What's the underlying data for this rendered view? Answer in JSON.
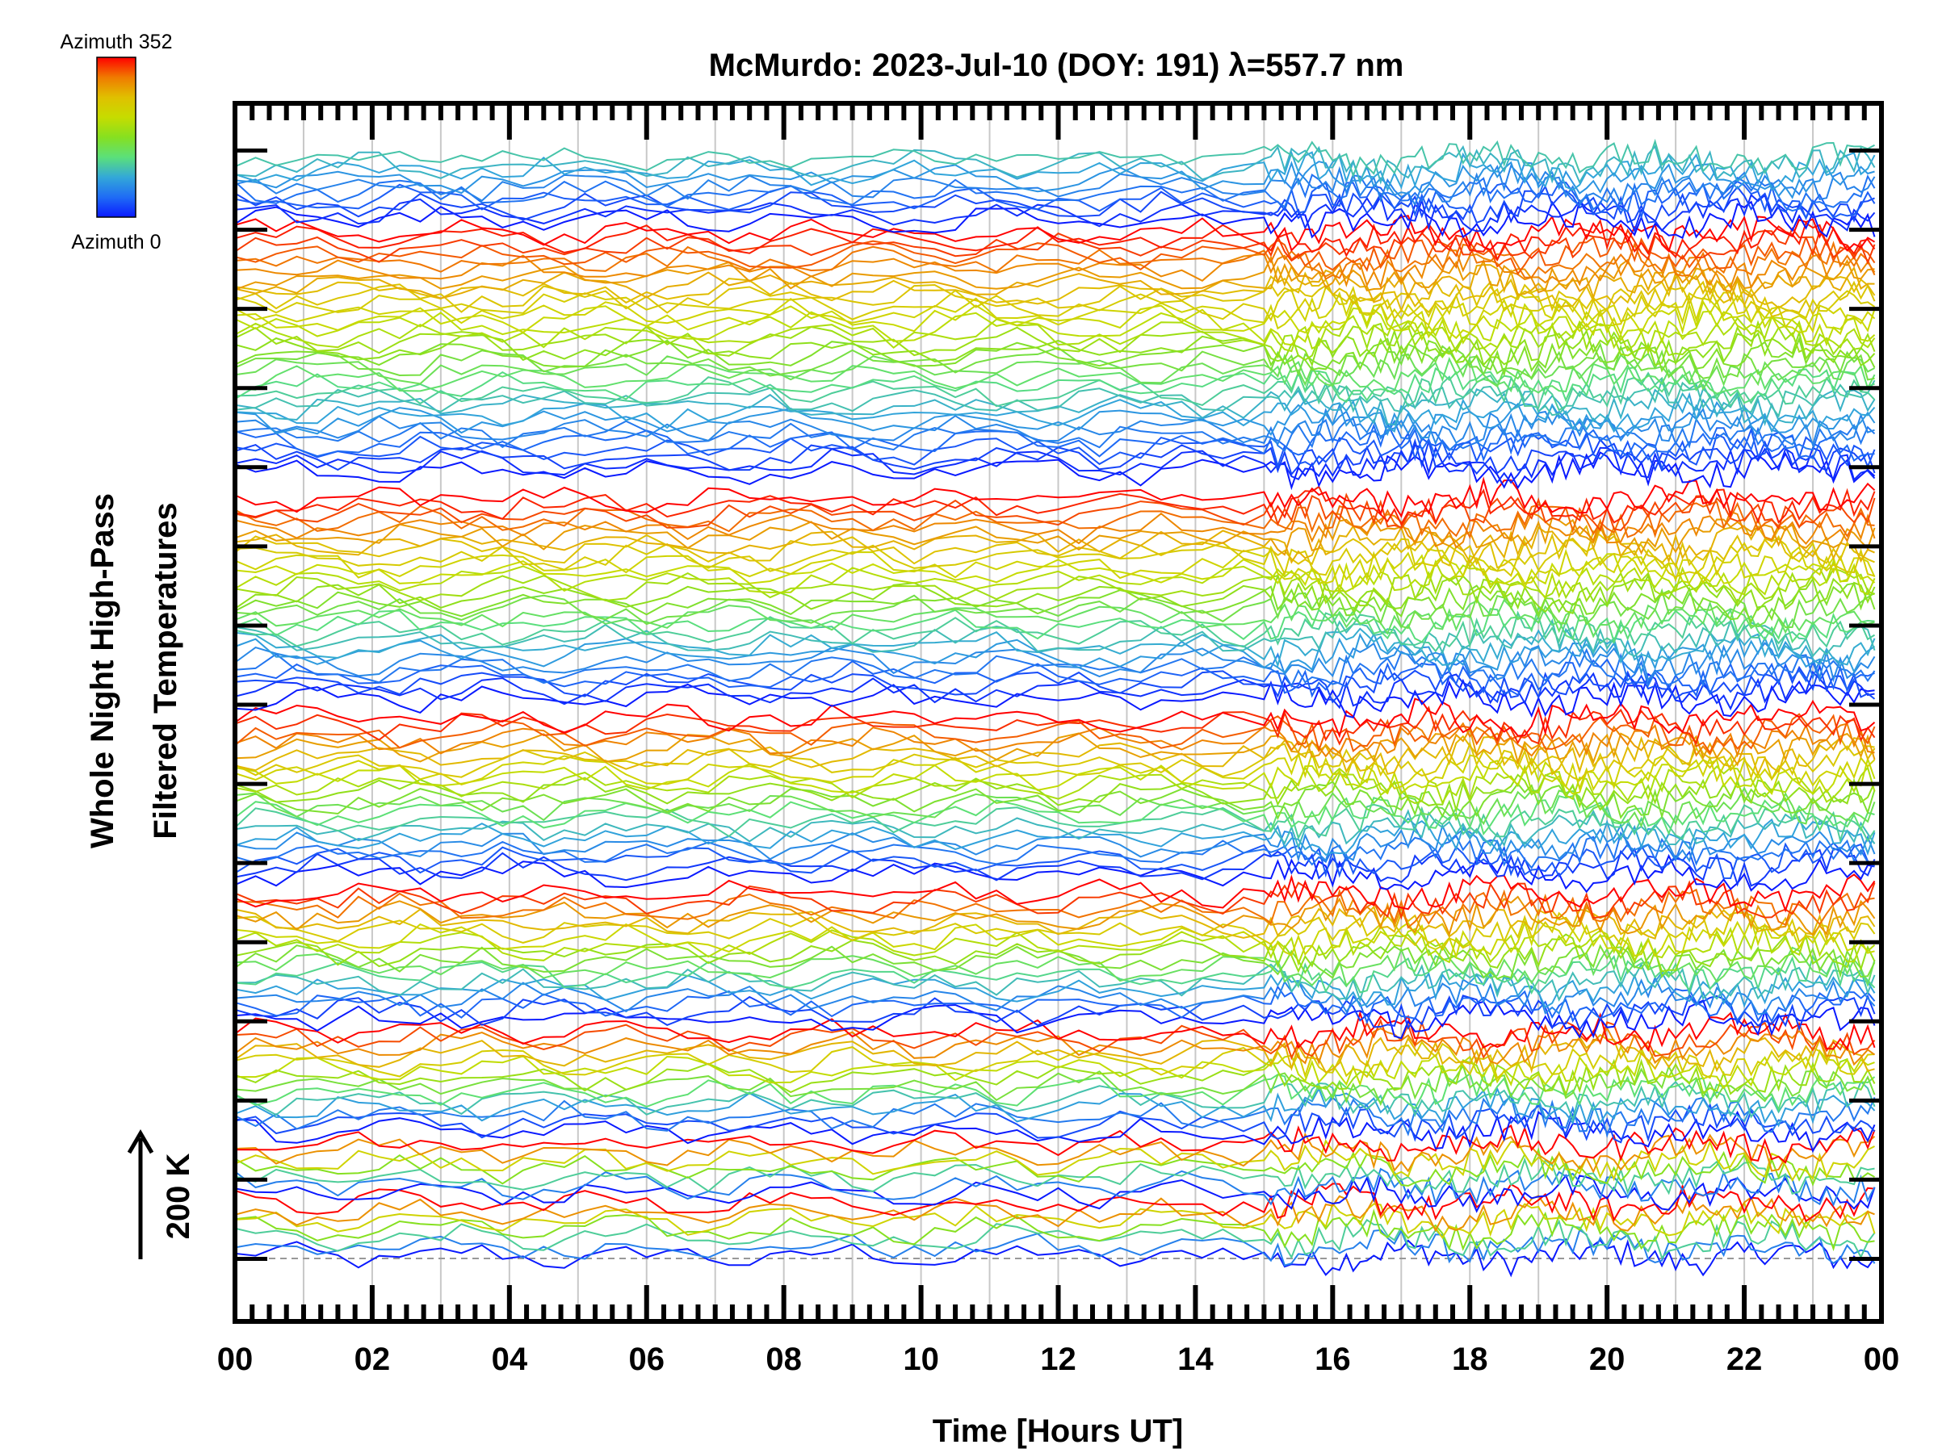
{
  "chart_data": {
    "type": "line",
    "title": "McMurdo: 2023-Jul-10 (DOY: 191) λ=557.7 nm",
    "xlabel": "Time [Hours UT]",
    "ylabel_lines": [
      "Whole Night High-Pass",
      "Filtered Temperatures"
    ],
    "xlim": [
      0,
      24
    ],
    "x_tick_labels": [
      "00",
      "02",
      "04",
      "06",
      "08",
      "10",
      "12",
      "14",
      "16",
      "18",
      "20",
      "22",
      "00"
    ],
    "x_major_step_hours": 2,
    "x_minor_step_hours": 0.25,
    "x_grid_step_hours": 1,
    "ylim_K": [
      -98,
      1810
    ],
    "y_tick_step_K": 124,
    "baseline_K": 0,
    "scale_bar": {
      "label": "200 K",
      "value_K": 200
    },
    "colorbar": {
      "label_top": "Azimuth 352",
      "label_bottom": "Azimuth 0",
      "min": 0,
      "max": 352,
      "colors": [
        "#0a1aff",
        "#1f6cf5",
        "#33a8d8",
        "#5be07a",
        "#86e020",
        "#c6dc00",
        "#e0c000",
        "#f07a00",
        "#ff0000"
      ]
    },
    "noise_amplitude_K": 14,
    "sampling_minutes_before_15h": 18,
    "sampling_minutes_after_15h": 6,
    "rings": [
      {
        "n": 7,
        "az_max": 352,
        "offset_K": [
          4,
          88
        ]
      },
      {
        "n": 7,
        "az_max": 352,
        "offset_K": [
          102,
          180
        ]
      },
      {
        "n": 14,
        "az_max": 352,
        "offset_K": [
          200,
          357
        ]
      },
      {
        "n": 18,
        "az_max": 352,
        "offset_K": [
          376,
          572
        ]
      },
      {
        "n": 22,
        "az_max": 352,
        "offset_K": [
          603,
          847
        ]
      },
      {
        "n": 28,
        "az_max": 352,
        "offset_K": [
          878,
          1191
        ]
      },
      {
        "n": 34,
        "az_max": 352,
        "offset_K": [
          1234,
          1607
        ]
      },
      {
        "n": 10,
        "az_max": 110,
        "offset_K": [
          1627,
          1725
        ]
      }
    ]
  }
}
